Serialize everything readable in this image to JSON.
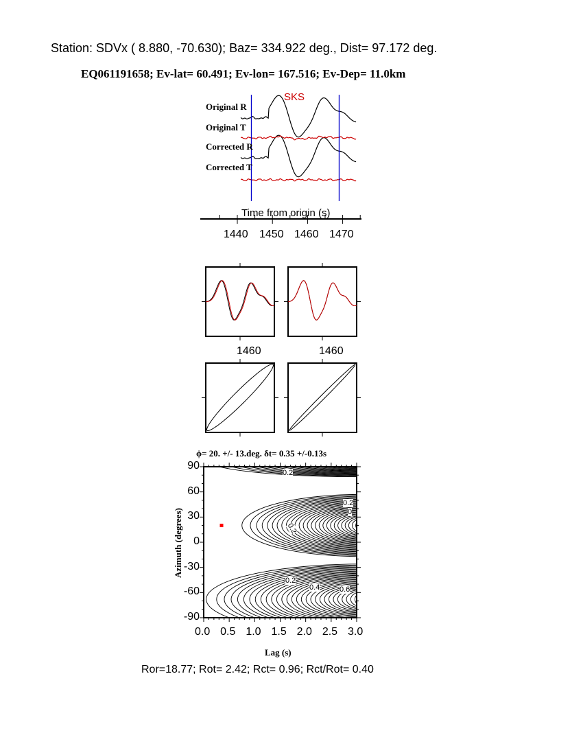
{
  "header": {
    "station_line": "Station: SDVx ( 8.880,  -70.630); Baz=  334.922 deg., Dist=   97.172 deg.",
    "event_line": "EQ061191658; Ev-lat=  60.491; Ev-lon= 167.516; Ev-Dep= 11.0km"
  },
  "seismograms": {
    "phase_label": "SKS",
    "trace_labels": [
      "Original R",
      "Original T",
      "Corrected R",
      "Corrected T"
    ],
    "time_axis_label": "Time from origin (s)",
    "time_ticks": [
      "1440",
      "1450",
      "1460",
      "1470"
    ],
    "window_marker_color": "#0000cc",
    "colors": {
      "radial": "#000000",
      "transverse": "#cc0000"
    }
  },
  "waveform_panels": {
    "tick_labels": [
      "1460",
      "1460"
    ]
  },
  "chart_data": {
    "type": "contour",
    "title": "ϕ= 20. +/- 13.deg. δt= 0.35 +/-0.13s",
    "xlabel": "Lag (s)",
    "ylabel": "Azimuth (degrees)",
    "xlim": [
      0.0,
      3.0
    ],
    "ylim": [
      -90,
      90
    ],
    "x_ticks": [
      "0.0",
      "0.5",
      "1.0",
      "1.5",
      "2.0",
      "2.5",
      "3.0"
    ],
    "y_ticks": [
      "90",
      "60",
      "30",
      "0",
      "-30",
      "-60",
      "-90"
    ],
    "best_fit": {
      "lag": 0.35,
      "azimuth": 20,
      "color": "#ff0000"
    },
    "contour_labels": [
      "0.2",
      "0.2",
      "0",
      "0.2",
      "0.2",
      "0.4",
      "0.6"
    ]
  },
  "footer": {
    "stats": "Ror=18.77; Rot= 2.42; Rct= 0.96; Rct/Rot= 0.40"
  }
}
